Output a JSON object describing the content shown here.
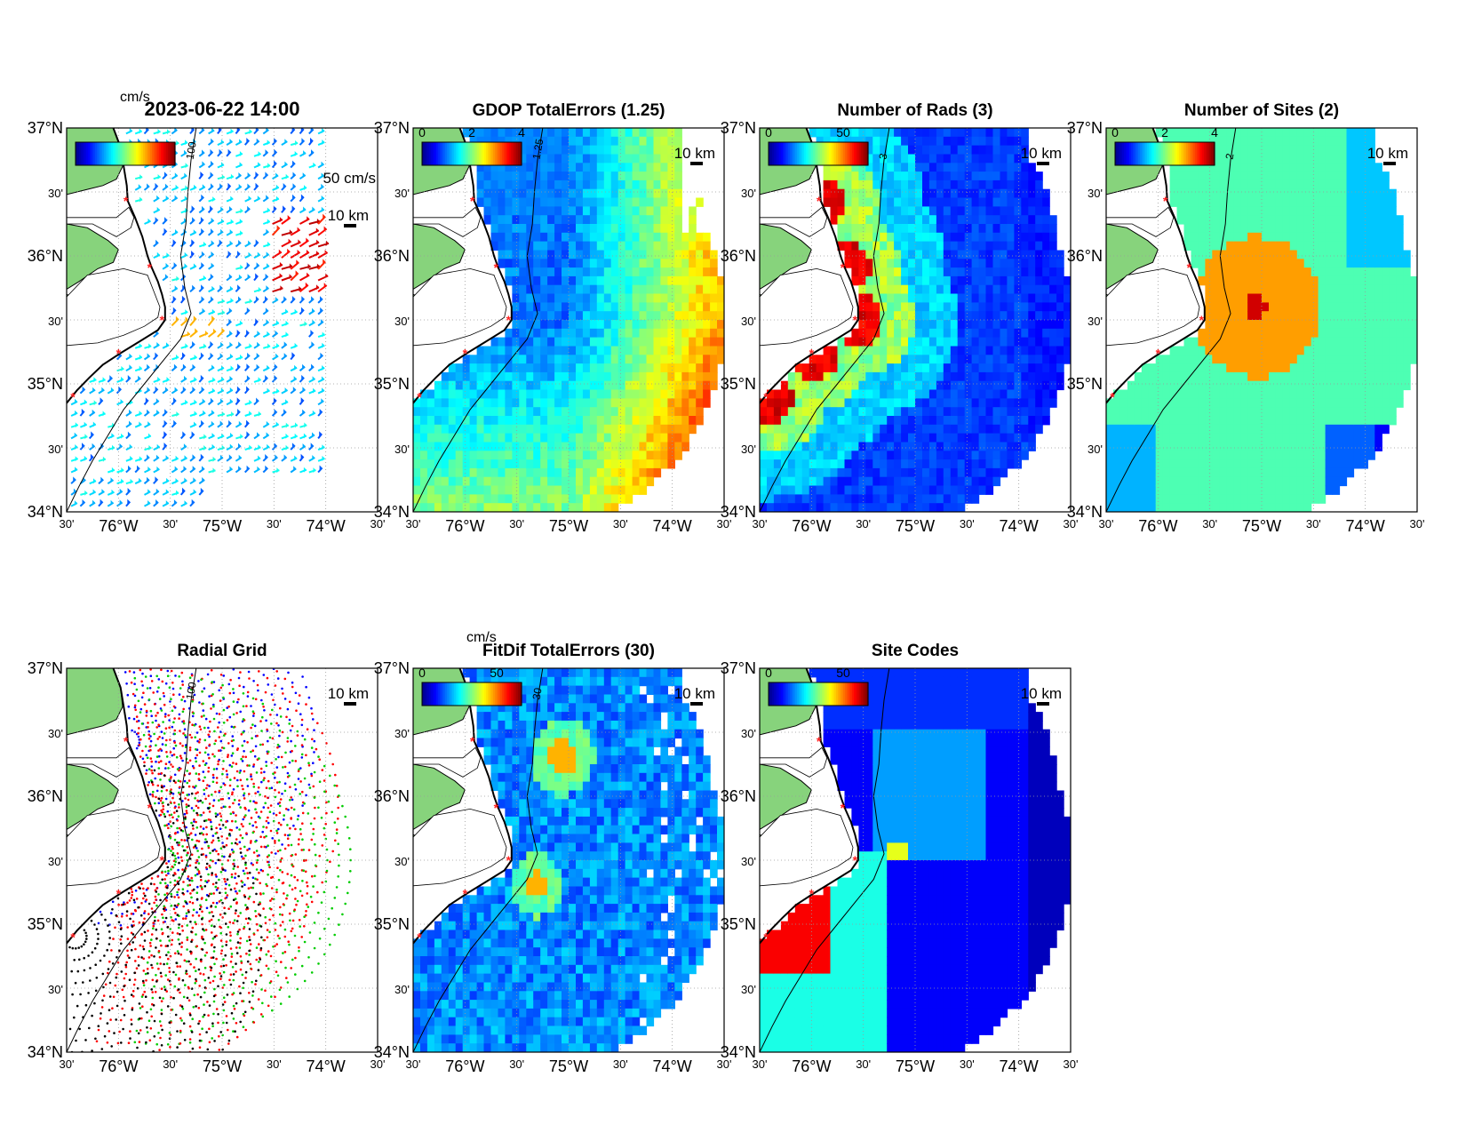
{
  "colors": {
    "land": "#87d37c",
    "coast": "#000000",
    "site_marker": "#ff2020",
    "grid": "#9a9a9a",
    "frame": "#000000",
    "jet": [
      "#00008f",
      "#0000ff",
      "#0080ff",
      "#00ffff",
      "#80ff80",
      "#ffff00",
      "#ff8000",
      "#ff0000",
      "#800000"
    ]
  },
  "axes": {
    "lat_labels": [
      "37°N",
      "30'",
      "36°N",
      "30'",
      "35°N",
      "30'",
      "34°N"
    ],
    "lon_labels": [
      "30'",
      "76°W",
      "30'",
      "75°W",
      "30'",
      "74°W",
      "30'"
    ]
  },
  "sites": [
    {
      "lat": 36.43,
      "lon": -75.91
    },
    {
      "lat": 35.91,
      "lon": -75.68
    },
    {
      "lat": 35.5,
      "lon": -75.56
    },
    {
      "lat": 35.24,
      "lon": -75.98
    },
    {
      "lat": 34.9,
      "lon": -76.42
    }
  ],
  "panels": [
    {
      "key": "totals",
      "title": "2023-06-22 14:00",
      "field": "vectors",
      "colorbar": {
        "unit": "cm/s",
        "ticks": []
      },
      "scale_label": "10 km",
      "vector_scale_label": "50 cm/s",
      "contour_label": "100",
      "legend_stub": "overlap",
      "note": ""
    },
    {
      "key": "gdop",
      "title": "GDOP TotalErrors (1.25)",
      "field": "gdop",
      "colorbar": {
        "unit": "",
        "ticks": [
          "0",
          "2",
          "4"
        ]
      },
      "scale_label": "10 km",
      "contour_label": "1.25"
    },
    {
      "key": "nrads",
      "title": "Number of Rads (3)",
      "field": "nrads",
      "colorbar": {
        "unit": "",
        "ticks": [
          "0",
          "50"
        ]
      },
      "scale_label": "10 km",
      "contour_label": "3"
    },
    {
      "key": "nsites",
      "title": "Number of Sites (2)",
      "field": "nsites",
      "colorbar": {
        "unit": "",
        "ticks": [
          "0",
          "2",
          "4"
        ]
      },
      "scale_label": "10 km",
      "contour_label": "2"
    },
    {
      "key": "radgrid",
      "title": "Radial Grid",
      "field": "radgrid",
      "colorbar": null,
      "scale_label": "10 km",
      "contour_label": "100"
    },
    {
      "key": "fitdif",
      "title": "FitDif TotalErrors (30)",
      "field": "fitdif",
      "colorbar": {
        "unit": "cm/s",
        "ticks": [
          "0",
          "50"
        ]
      },
      "scale_label": "10 km",
      "contour_label": "30"
    },
    {
      "key": "sitecodes",
      "title": "Site Codes",
      "field": "sitecodes",
      "colorbar": {
        "unit": "",
        "ticks": [
          "0",
          "50"
        ]
      },
      "scale_label": "10 km",
      "contour_label": ""
    }
  ]
}
